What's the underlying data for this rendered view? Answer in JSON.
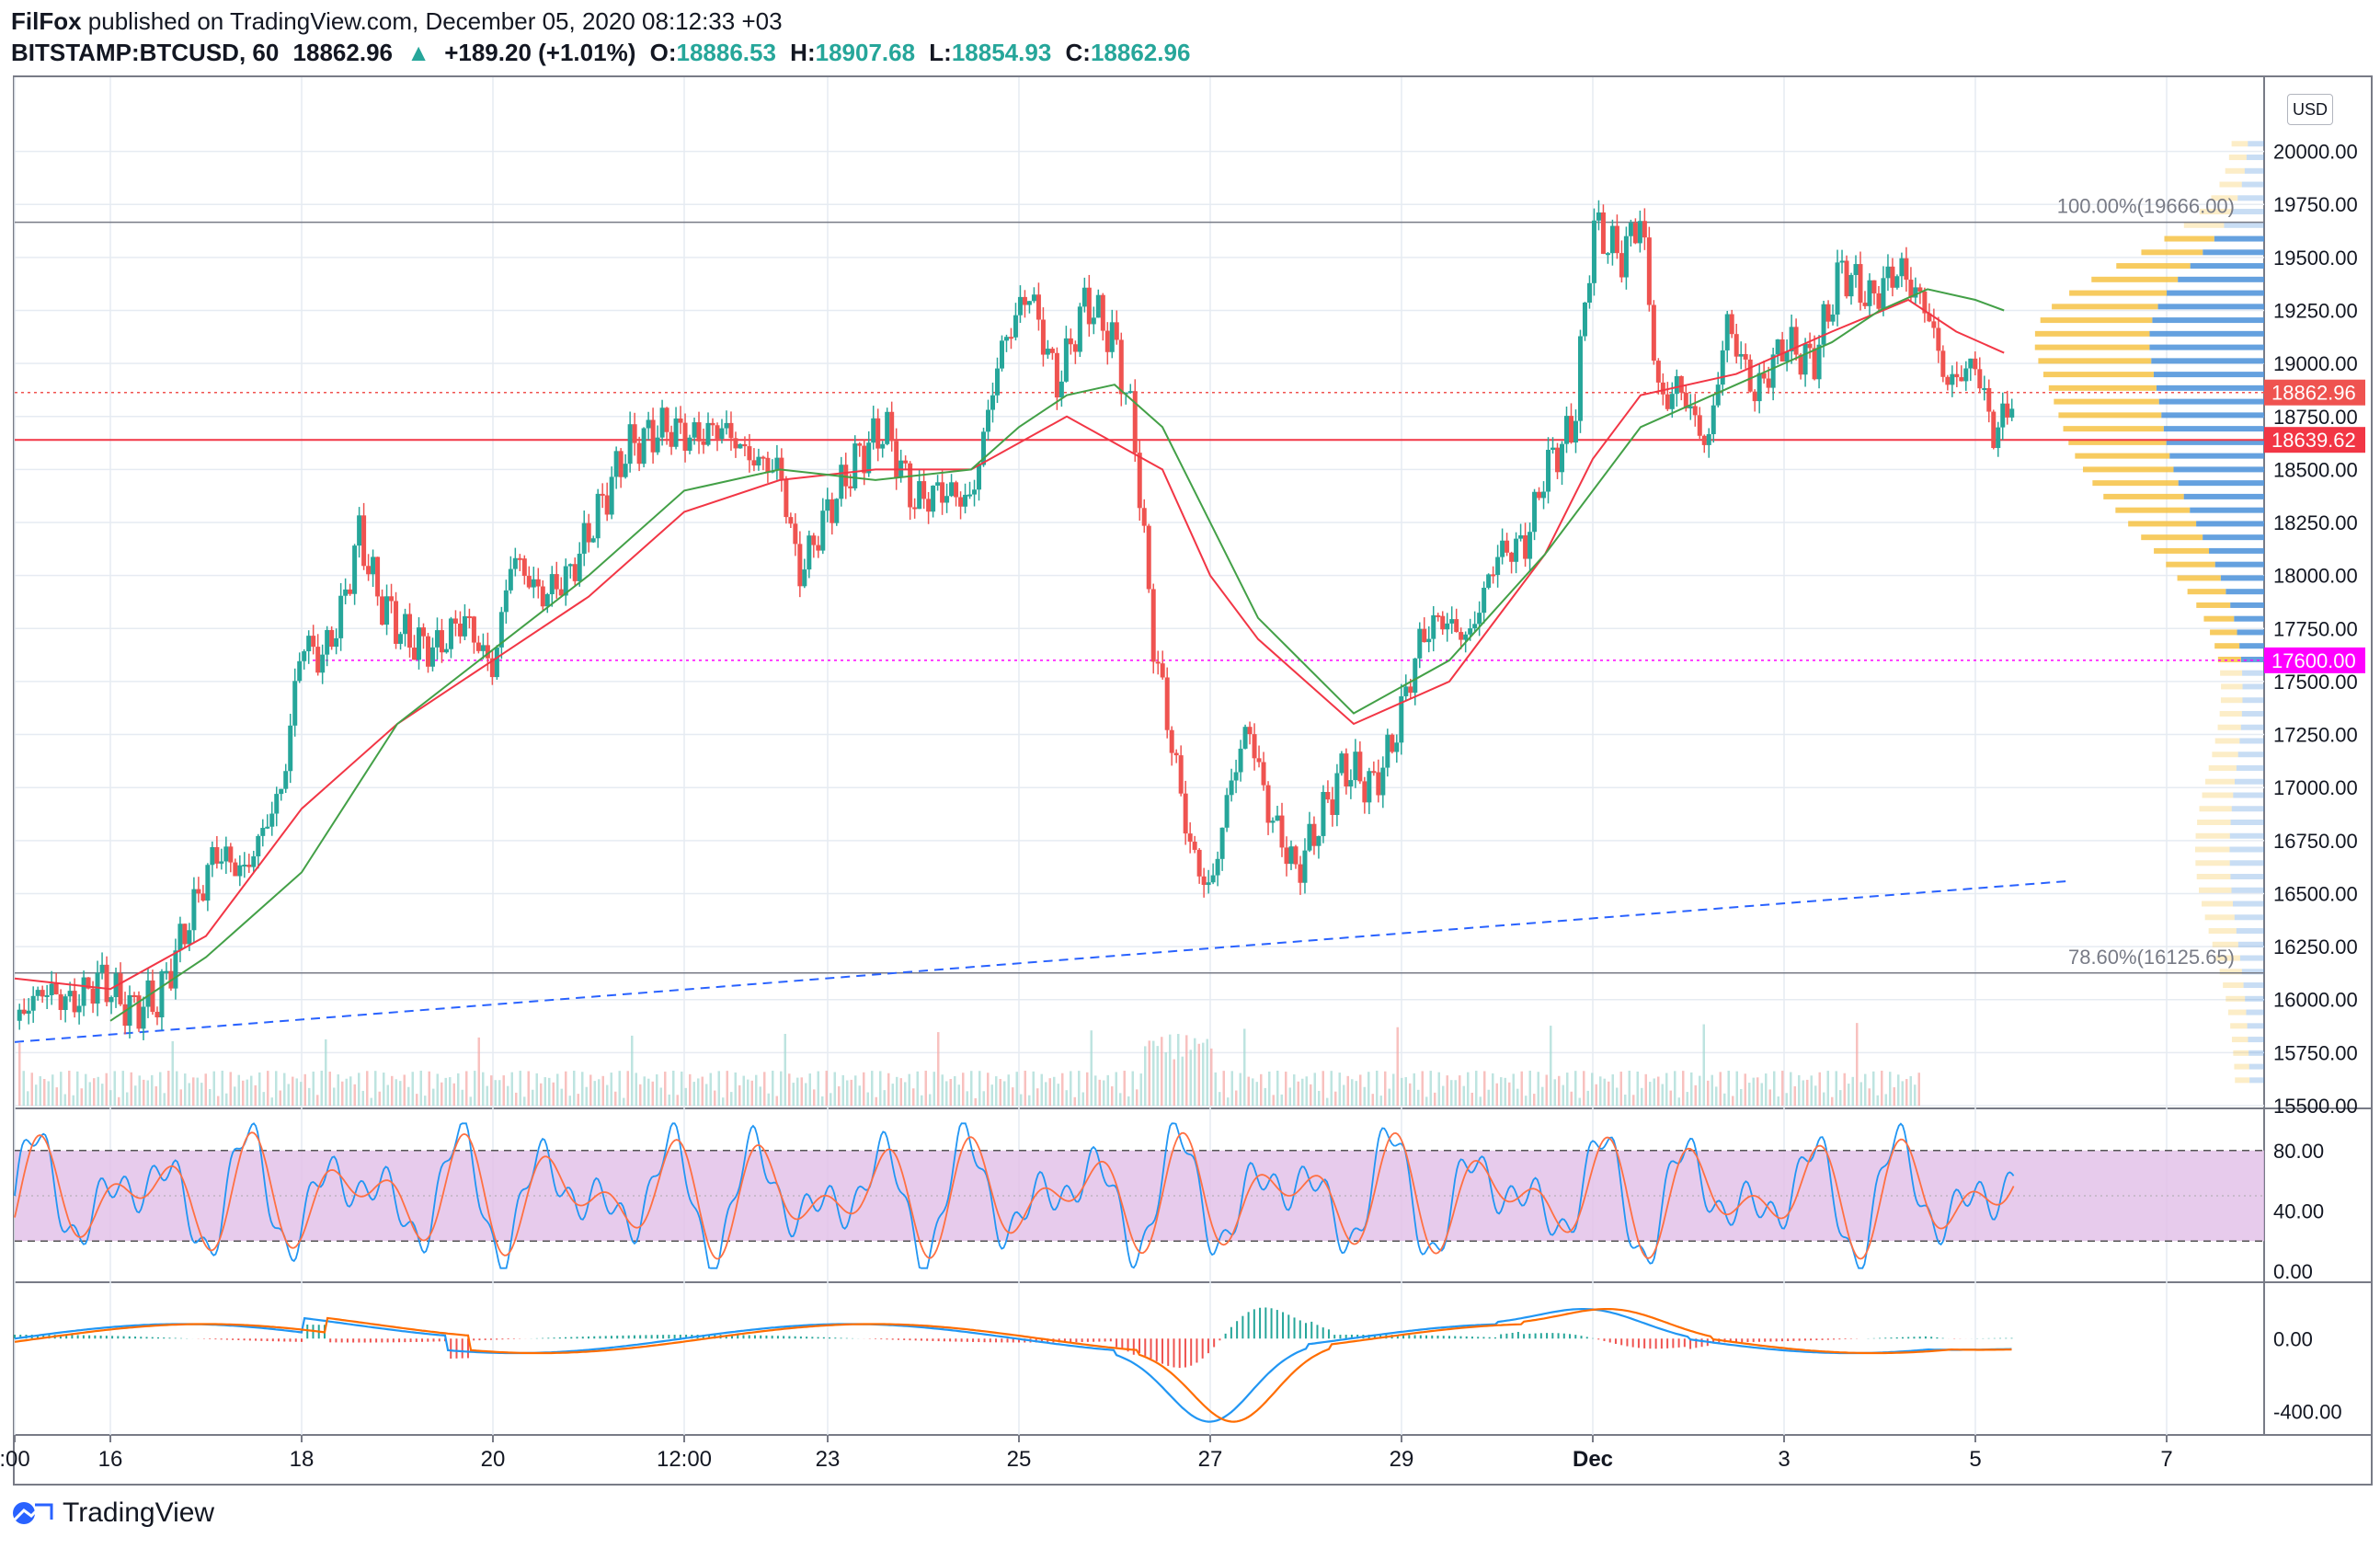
{
  "header": {
    "author": "FilFox",
    "published": "published on TradingView.com, December 05, 2020 08:12:33 +03",
    "symbol": "BITSTAMP:BTCUSD, 60",
    "last": "18862.96",
    "change": "+189.20 (+1.01%)",
    "o_label": "O:",
    "o": "18886.53",
    "h_label": "H:",
    "h": "18907.68",
    "l_label": "L:",
    "l": "18854.93",
    "c_label": "C:",
    "c": "18862.96"
  },
  "currency": "USD",
  "brand": "TradingView",
  "colors": {
    "up": "#26a69a",
    "down": "#ef5350",
    "ma_red": "#f23645",
    "ma_green": "#43a047",
    "trend": "#2962ff",
    "magenta": "#ff00ff",
    "stoch_fill": "#e1bee7",
    "vp_up": "#4a90d9",
    "vp_down": "#f6c244"
  },
  "chart_data": [
    {
      "type": "candlestick",
      "panel": "price",
      "y_ticks": [
        "20000.00",
        "19750.00",
        "19500.00",
        "19250.00",
        "19000.00",
        "18750.00",
        "18500.00",
        "18250.00",
        "18000.00",
        "17750.00",
        "17500.00",
        "17250.00",
        "17000.00",
        "16750.00",
        "16500.00",
        "16250.00",
        "16000.00",
        "15750.00",
        "15500.00"
      ],
      "ylim": [
        15500,
        20150
      ],
      "x_ticks": [
        ":00",
        "16",
        "18",
        "20",
        "12:00",
        "23",
        "25",
        "27",
        "29",
        "Dec",
        "3",
        "5",
        "7"
      ],
      "x_tick_pos": [
        0,
        1,
        3,
        5,
        7,
        8.5,
        10.5,
        12.5,
        14.5,
        16.5,
        18.5,
        20.5,
        22.5
      ],
      "x_range": [
        0,
        23.5
      ],
      "price_path": [
        [
          0,
          15900
        ],
        [
          0.3,
          16050
        ],
        [
          0.6,
          15980
        ],
        [
          0.9,
          16100
        ],
        [
          1.2,
          15950
        ],
        [
          1.5,
          16000
        ],
        [
          1.8,
          16350
        ],
        [
          2.1,
          16700
        ],
        [
          2.4,
          16600
        ],
        [
          2.8,
          17000
        ],
        [
          3.0,
          17700
        ],
        [
          3.2,
          17600
        ],
        [
          3.4,
          17800
        ],
        [
          3.6,
          18200
        ],
        [
          3.8,
          17900
        ],
        [
          4.1,
          17700
        ],
        [
          4.4,
          17650
        ],
        [
          4.7,
          17800
        ],
        [
          5.0,
          17550
        ],
        [
          5.2,
          18100
        ],
        [
          5.5,
          17900
        ],
        [
          5.8,
          18000
        ],
        [
          6.1,
          18300
        ],
        [
          6.4,
          18600
        ],
        [
          6.8,
          18700
        ],
        [
          7.1,
          18650
        ],
        [
          7.4,
          18700
        ],
        [
          7.7,
          18550
        ],
        [
          8.0,
          18500
        ],
        [
          8.2,
          18000
        ],
        [
          8.5,
          18300
        ],
        [
          8.8,
          18550
        ],
        [
          9.1,
          18700
        ],
        [
          9.4,
          18350
        ],
        [
          9.7,
          18400
        ],
        [
          10.0,
          18350
        ],
        [
          10.3,
          19050
        ],
        [
          10.6,
          19350
        ],
        [
          10.9,
          18900
        ],
        [
          11.2,
          19300
        ],
        [
          11.5,
          19100
        ],
        [
          11.7,
          18700
        ],
        [
          11.9,
          17700
        ],
        [
          12.1,
          17200
        ],
        [
          12.3,
          16700
        ],
        [
          12.5,
          16500
        ],
        [
          12.7,
          17000
        ],
        [
          12.9,
          17300
        ],
        [
          13.1,
          16900
        ],
        [
          13.4,
          16600
        ],
        [
          13.6,
          16800
        ],
        [
          13.9,
          17100
        ],
        [
          14.2,
          17000
        ],
        [
          14.4,
          17200
        ],
        [
          14.7,
          17700
        ],
        [
          14.9,
          17800
        ],
        [
          15.2,
          17700
        ],
        [
          15.5,
          18100
        ],
        [
          15.8,
          18150
        ],
        [
          16.0,
          18500
        ],
        [
          16.3,
          18700
        ],
        [
          16.5,
          19650
        ],
        [
          16.8,
          19500
        ],
        [
          17.0,
          19700
        ],
        [
          17.2,
          18800
        ],
        [
          17.4,
          18900
        ],
        [
          17.7,
          18600
        ],
        [
          17.9,
          19200
        ],
        [
          18.2,
          18850
        ],
        [
          18.5,
          19100
        ],
        [
          18.8,
          19000
        ],
        [
          19.1,
          19450
        ],
        [
          19.4,
          19300
        ],
        [
          19.7,
          19450
        ],
        [
          20.0,
          19250
        ],
        [
          20.2,
          18900
        ],
        [
          20.5,
          19000
        ],
        [
          20.7,
          18650
        ],
        [
          20.9,
          18860
        ]
      ],
      "lines": [
        {
          "name": "",
          "color": "#f23645",
          "values": [
            [
              0,
              16100
            ],
            [
              1,
              16050
            ],
            [
              2,
              16300
            ],
            [
              3,
              16900
            ],
            [
              4,
              17300
            ],
            [
              5,
              17600
            ],
            [
              6,
              17900
            ],
            [
              7,
              18300
            ],
            [
              8,
              18450
            ],
            [
              9,
              18500
            ],
            [
              10,
              18500
            ],
            [
              11,
              18750
            ],
            [
              12,
              18500
            ],
            [
              12.5,
              18000
            ],
            [
              13,
              17700
            ],
            [
              14,
              17300
            ],
            [
              15,
              17500
            ],
            [
              16,
              18100
            ],
            [
              16.5,
              18550
            ],
            [
              17,
              18850
            ],
            [
              18,
              18950
            ],
            [
              19,
              19150
            ],
            [
              19.8,
              19300
            ],
            [
              20.3,
              19150
            ],
            [
              20.8,
              19050
            ]
          ]
        },
        {
          "name": "",
          "color": "#43a047",
          "values": [
            [
              1,
              15900
            ],
            [
              2,
              16200
            ],
            [
              3,
              16600
            ],
            [
              4,
              17300
            ],
            [
              5,
              17650
            ],
            [
              6,
              18000
            ],
            [
              7,
              18400
            ],
            [
              8,
              18500
            ],
            [
              9,
              18450
            ],
            [
              10,
              18500
            ],
            [
              10.5,
              18700
            ],
            [
              11,
              18850
            ],
            [
              11.5,
              18900
            ],
            [
              12,
              18700
            ],
            [
              13,
              17800
            ],
            [
              14,
              17350
            ],
            [
              15,
              17600
            ],
            [
              16,
              18100
            ],
            [
              17,
              18700
            ],
            [
              18,
              18900
            ],
            [
              19,
              19100
            ],
            [
              19.5,
              19250
            ],
            [
              20,
              19350
            ],
            [
              20.5,
              19300
            ],
            [
              20.8,
              19250
            ]
          ]
        }
      ],
      "levels": [
        {
          "label": "100.00%(19666.00)",
          "value": 19666
        },
        {
          "label": "78.60%(16125.65)",
          "value": 16125.65
        }
      ],
      "price_labels": [
        {
          "value": 18862.96,
          "text": "18862.96",
          "color": "#ef5350"
        },
        {
          "value": 18639.62,
          "text": "18639.62",
          "color": "#f23645"
        },
        {
          "value": 17600.0,
          "text": "17600.00",
          "color": "#ff00ff"
        }
      ],
      "trendline": {
        "from": [
          0,
          15800
        ],
        "to": [
          21.5,
          16560
        ]
      }
    },
    {
      "type": "line",
      "panel": "stochastic",
      "y_ticks": [
        "80.00",
        "40.00",
        "0.00"
      ],
      "ylim": [
        0,
        100
      ],
      "band": [
        20,
        80
      ]
    },
    {
      "type": "line",
      "panel": "macd",
      "y_ticks": [
        "0.00",
        "-400.00"
      ],
      "ylim": [
        -500,
        300
      ]
    }
  ]
}
